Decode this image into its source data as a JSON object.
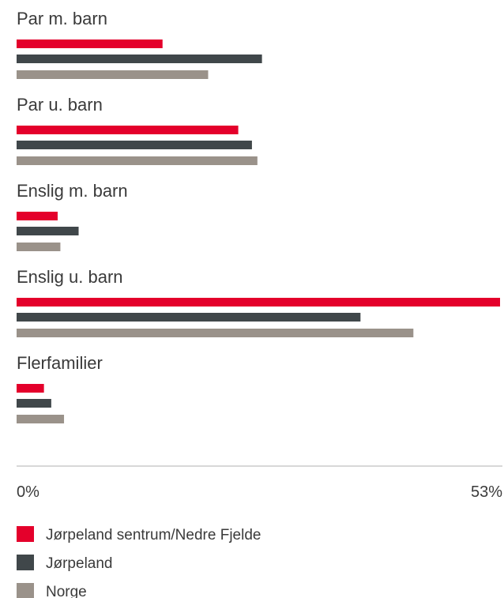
{
  "chart_data": {
    "type": "bar",
    "orientation": "horizontal",
    "categories": [
      "Par m. barn",
      "Par u. barn",
      "Enslig m. barn",
      "Enslig u. barn",
      "Flerfamilier"
    ],
    "series": [
      {
        "name": "Jørpeland sentrum/Nedre Fjelde",
        "color": "#e4002b",
        "values": [
          16.0,
          24.3,
          4.5,
          53.0,
          3.0
        ]
      },
      {
        "name": "Jørpeland",
        "color": "#40474a",
        "values": [
          26.9,
          25.8,
          6.8,
          37.7,
          3.8
        ]
      },
      {
        "name": "Norge",
        "color": "#9a928a",
        "values": [
          21.0,
          26.4,
          4.8,
          43.5,
          5.2
        ]
      }
    ],
    "xlim": [
      0,
      53
    ],
    "tick_labels": [
      "0%",
      "53%"
    ],
    "legend_position": "bottom-left",
    "grid": false
  },
  "colors": {
    "axis": "#b0b0b0",
    "text": "#3a3a3a"
  }
}
